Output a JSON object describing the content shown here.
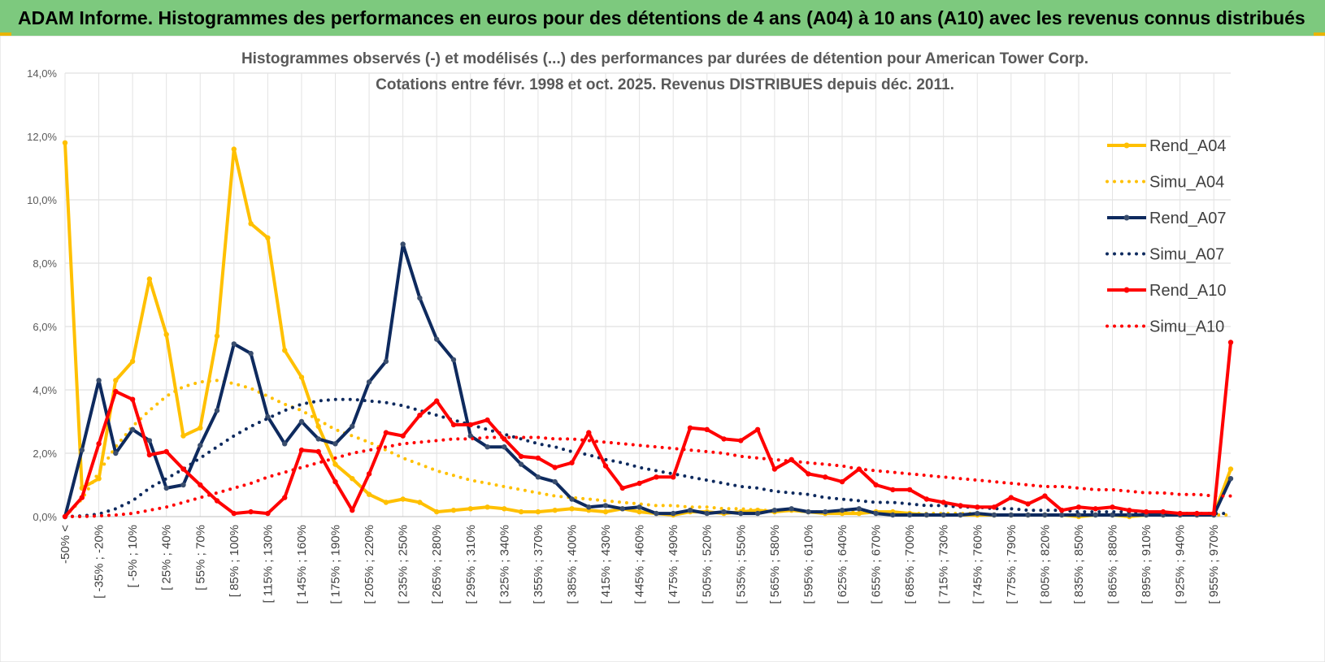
{
  "banner": {
    "title": "ADAM Informe. Histogrammes des performances en euros pour des détentions de 4 ans (A04) à 10 ans (A10) avec les revenus connus distribués"
  },
  "colors": {
    "banner_bg": "#7dc97e",
    "a04": "#FFC000",
    "a07": "#0E2A5E",
    "a10": "#FF0000",
    "grid": "#d9d9d9",
    "text": "#595959"
  },
  "chart_data": {
    "type": "line",
    "title": "Histogrammes observés (-) et modélisés (...) des performances par durées de détention pour American Tower Corp.",
    "subtitle": "Cotations entre févr. 1998 et oct. 2025. Revenus DISTRIBUES depuis déc. 2011.",
    "xlabel": "",
    "ylabel": "",
    "ylim": [
      0,
      14
    ],
    "y_unit": "%",
    "y_ticks": [
      "0,0%",
      "2,0%",
      "4,0%",
      "6,0%",
      "8,0%",
      "10,0%",
      "12,0%",
      "14,0%"
    ],
    "x_count": 70,
    "x_tick_labels": [
      "-50% <",
      "[ -35% ; -20%",
      "[ -5% ; 10%",
      "[ 25% ; 40%",
      "[ 55% ; 70%",
      "[ 85% ; 100%",
      "[ 115% ; 130%",
      "[ 145% ; 160%",
      "[ 175% ; 190%",
      "[ 205% ; 220%",
      "[ 235% ; 250%",
      "[ 265% ; 280%",
      "[ 295% ; 310%",
      "[ 325% ; 340%",
      "[ 355% ; 370%",
      "[ 385% ; 400%",
      "[ 415% ; 430%",
      "[ 445% ; 460%",
      "[ 475% ; 490%",
      "[ 505% ; 520%",
      "[ 535% ; 550%",
      "[ 565% ; 580%",
      "[ 595% ; 610%",
      "[ 625% ; 640%",
      "[ 655% ; 670%",
      "[ 685% ; 700%",
      "[ 715% ; 730%",
      "[ 745% ; 760%",
      "[ 775% ; 790%",
      "[ 805% ; 820%",
      "[ 835% ; 850%",
      "[ 865% ; 880%",
      "[ 895% ; 910%",
      "[ 925% ; 940%",
      "[ 955% ; 970%"
    ],
    "series": [
      {
        "name": "Rend_A04",
        "style": "solid",
        "color": "#FFC000",
        "values": [
          11.8,
          0.9,
          1.2,
          4.3,
          4.9,
          7.5,
          5.75,
          2.55,
          2.8,
          5.7,
          11.6,
          9.25,
          8.8,
          5.25,
          4.4,
          2.85,
          1.65,
          1.2,
          0.7,
          0.45,
          0.55,
          0.45,
          0.15,
          0.2,
          0.25,
          0.3,
          0.25,
          0.15,
          0.15,
          0.2,
          0.25,
          0.2,
          0.15,
          0.25,
          0.15,
          0.1,
          0.05,
          0.15,
          0.15,
          0.1,
          0.15,
          0.2,
          0.15,
          0.2,
          0.15,
          0.1,
          0.1,
          0.1,
          0.15,
          0.15,
          0.1,
          0.05,
          0.05,
          0.05,
          0.05,
          0.05,
          0.05,
          0.05,
          0.05,
          0.05,
          0.0,
          0.05,
          0.05,
          0.0,
          0.05,
          0.05,
          0.05,
          0.05,
          0.05,
          1.5
        ]
      },
      {
        "name": "Simu_A04",
        "style": "dotted",
        "color": "#FFC000",
        "values": [
          0.0,
          0.55,
          1.4,
          2.2,
          2.85,
          3.35,
          3.8,
          4.1,
          4.25,
          4.3,
          4.2,
          4.05,
          3.8,
          3.55,
          3.35,
          3.05,
          2.75,
          2.55,
          2.35,
          2.1,
          1.85,
          1.65,
          1.45,
          1.3,
          1.15,
          1.05,
          0.95,
          0.85,
          0.75,
          0.65,
          0.6,
          0.55,
          0.5,
          0.45,
          0.4,
          0.35,
          0.35,
          0.3,
          0.3,
          0.25,
          0.25,
          0.2,
          0.2,
          0.2,
          0.15,
          0.15,
          0.15,
          0.15,
          0.1,
          0.1,
          0.1,
          0.1,
          0.1,
          0.1,
          0.1,
          0.05,
          0.05,
          0.05,
          0.05,
          0.05,
          0.05,
          0.05,
          0.05,
          0.05,
          0.05,
          0.05,
          0.05,
          0.05,
          0.05,
          0.05
        ]
      },
      {
        "name": "Rend_A07",
        "style": "solid",
        "color": "#0E2A5E",
        "values": [
          0.0,
          2.1,
          4.3,
          2.0,
          2.75,
          2.4,
          0.9,
          1.0,
          2.25,
          3.35,
          5.45,
          5.15,
          3.15,
          2.3,
          3.0,
          2.45,
          2.3,
          2.85,
          4.25,
          4.9,
          8.6,
          6.9,
          5.6,
          4.95,
          2.55,
          2.2,
          2.2,
          1.65,
          1.25,
          1.1,
          0.55,
          0.3,
          0.35,
          0.25,
          0.3,
          0.1,
          0.1,
          0.2,
          0.1,
          0.15,
          0.1,
          0.1,
          0.2,
          0.25,
          0.15,
          0.15,
          0.2,
          0.25,
          0.1,
          0.05,
          0.05,
          0.05,
          0.05,
          0.05,
          0.1,
          0.05,
          0.05,
          0.05,
          0.05,
          0.05,
          0.05,
          0.05,
          0.05,
          0.05,
          0.05,
          0.05,
          0.05,
          0.05,
          0.05,
          1.2
        ]
      },
      {
        "name": "Simu_A07",
        "style": "dotted",
        "color": "#0E2A5E",
        "values": [
          0.0,
          0.02,
          0.08,
          0.25,
          0.5,
          0.9,
          1.2,
          1.5,
          1.85,
          2.2,
          2.55,
          2.85,
          3.1,
          3.35,
          3.55,
          3.65,
          3.7,
          3.7,
          3.65,
          3.6,
          3.5,
          3.35,
          3.2,
          3.05,
          2.9,
          2.75,
          2.6,
          2.45,
          2.3,
          2.2,
          2.05,
          1.95,
          1.8,
          1.7,
          1.55,
          1.45,
          1.35,
          1.25,
          1.15,
          1.05,
          0.95,
          0.9,
          0.8,
          0.75,
          0.7,
          0.6,
          0.55,
          0.5,
          0.45,
          0.45,
          0.4,
          0.35,
          0.35,
          0.3,
          0.3,
          0.25,
          0.25,
          0.2,
          0.2,
          0.2,
          0.15,
          0.15,
          0.15,
          0.15,
          0.1,
          0.1,
          0.1,
          0.1,
          0.1,
          0.1
        ]
      },
      {
        "name": "Rend_A10",
        "style": "solid",
        "color": "#FF0000",
        "values": [
          0.0,
          0.6,
          2.3,
          3.95,
          3.7,
          1.95,
          2.05,
          1.5,
          1.0,
          0.5,
          0.1,
          0.15,
          0.1,
          0.6,
          2.1,
          2.05,
          1.1,
          0.2,
          1.35,
          2.65,
          2.55,
          3.2,
          3.65,
          2.9,
          2.9,
          3.05,
          2.45,
          1.9,
          1.85,
          1.55,
          1.7,
          2.65,
          1.6,
          0.9,
          1.05,
          1.25,
          1.25,
          2.8,
          2.75,
          2.45,
          2.4,
          2.75,
          1.5,
          1.8,
          1.35,
          1.25,
          1.1,
          1.5,
          1.0,
          0.85,
          0.85,
          0.55,
          0.45,
          0.35,
          0.3,
          0.3,
          0.6,
          0.4,
          0.65,
          0.2,
          0.3,
          0.25,
          0.3,
          0.2,
          0.15,
          0.15,
          0.1,
          0.1,
          0.1,
          5.5
        ]
      },
      {
        "name": "Simu_A10",
        "style": "dotted",
        "color": "#FF0000",
        "values": [
          0.0,
          0.0,
          0.02,
          0.05,
          0.1,
          0.2,
          0.3,
          0.45,
          0.6,
          0.75,
          0.9,
          1.05,
          1.25,
          1.4,
          1.55,
          1.7,
          1.85,
          2.0,
          2.1,
          2.2,
          2.3,
          2.35,
          2.4,
          2.45,
          2.45,
          2.5,
          2.5,
          2.5,
          2.5,
          2.45,
          2.45,
          2.4,
          2.35,
          2.3,
          2.25,
          2.2,
          2.15,
          2.1,
          2.05,
          2.0,
          1.9,
          1.85,
          1.8,
          1.75,
          1.7,
          1.65,
          1.6,
          1.5,
          1.45,
          1.4,
          1.35,
          1.3,
          1.25,
          1.2,
          1.15,
          1.1,
          1.05,
          1.0,
          0.95,
          0.95,
          0.9,
          0.85,
          0.85,
          0.8,
          0.75,
          0.75,
          0.7,
          0.7,
          0.65,
          0.65
        ]
      }
    ],
    "legend": {
      "placement": "right",
      "entries": [
        "Rend_A04",
        "Simu_A04",
        "Rend_A07",
        "Simu_A07",
        "Rend_A10",
        "Simu_A10"
      ]
    }
  }
}
